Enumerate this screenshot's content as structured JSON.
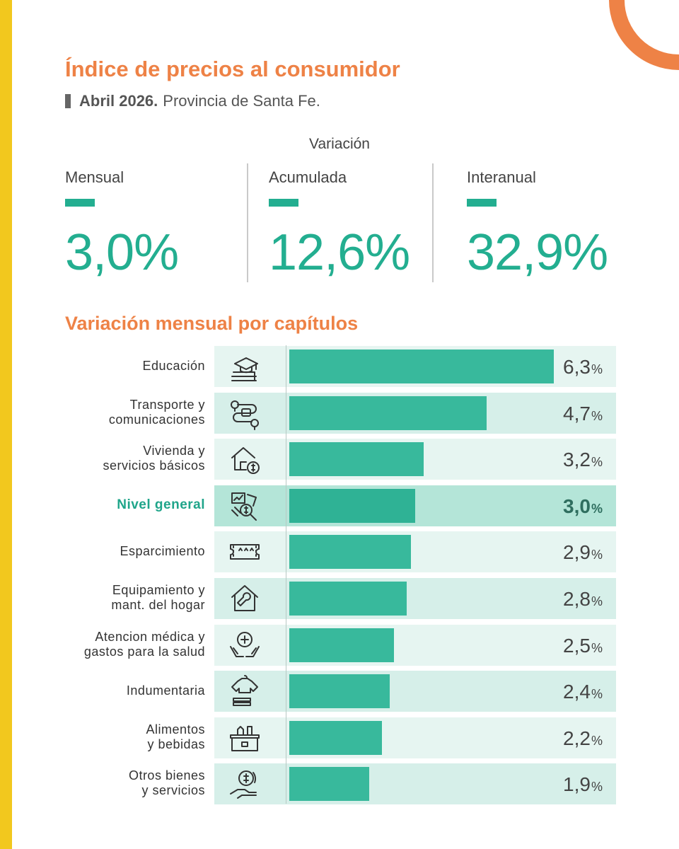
{
  "header": {
    "title": "Índice de precios al consumidor",
    "subtitle_date": "Abril 2026.",
    "subtitle_region": "Provincia de Santa Fe."
  },
  "variation": {
    "heading": "Variación",
    "stats": [
      {
        "label": "Mensual",
        "value": "3,0%"
      },
      {
        "label": "Acumulada",
        "value": "12,6%"
      },
      {
        "label": "Interanual",
        "value": "32,9%"
      }
    ]
  },
  "colors": {
    "accent_orange": "#ee8246",
    "accent_green": "#23ae90",
    "bar_green": "#38b99c",
    "stripe_yellow": "#f2c81e"
  },
  "chart_data": {
    "type": "bar",
    "orientation": "horizontal",
    "title": "Variación mensual por capítulos",
    "unit": "%",
    "xlim": [
      0,
      6.3
    ],
    "grid": false,
    "categories": [
      {
        "label": "Educación",
        "value": 6.3,
        "display": "6,3",
        "icon": "education-icon",
        "highlight": false
      },
      {
        "label": "Transporte y\ncomunicaciones",
        "value": 4.7,
        "display": "4,7",
        "icon": "transport-route-icon",
        "highlight": false
      },
      {
        "label": "Vivienda y\nservicios básicos",
        "value": 3.2,
        "display": "3,2",
        "icon": "house-bills-icon",
        "highlight": false
      },
      {
        "label": "Nivel general",
        "value": 3.0,
        "display": "3,0",
        "icon": "general-index-icon",
        "highlight": true
      },
      {
        "label": "Esparcimiento",
        "value": 2.9,
        "display": "2,9",
        "icon": "ticket-icon",
        "highlight": false
      },
      {
        "label": "Equipamiento y\nmant. del hogar",
        "value": 2.8,
        "display": "2,8",
        "icon": "home-maintenance-icon",
        "highlight": false
      },
      {
        "label": "Atencion médica y\ngastos para la salud",
        "value": 2.5,
        "display": "2,5",
        "icon": "health-care-icon",
        "highlight": false
      },
      {
        "label": "Indumentaria",
        "value": 2.4,
        "display": "2,4",
        "icon": "clothing-icon",
        "highlight": false
      },
      {
        "label": "Alimentos\ny bebidas",
        "value": 2.2,
        "display": "2,2",
        "icon": "food-box-icon",
        "highlight": false
      },
      {
        "label": "Otros bienes\ny servicios",
        "value": 1.9,
        "display": "1,9",
        "icon": "money-hand-icon",
        "highlight": false
      }
    ]
  }
}
